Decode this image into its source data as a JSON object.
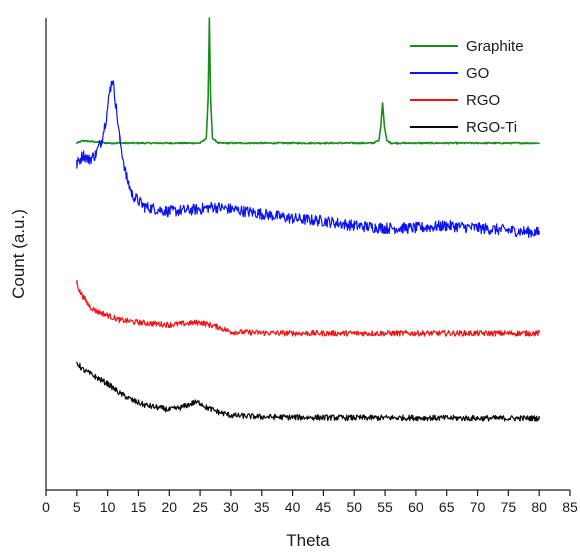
{
  "chart_data": {
    "type": "line",
    "title": "",
    "xlabel": "Theta",
    "ylabel": "Count (a.u.)",
    "xlim": [
      0,
      85
    ],
    "x_ticks": [
      0,
      5,
      10,
      15,
      20,
      25,
      30,
      35,
      40,
      45,
      50,
      55,
      60,
      65,
      70,
      75,
      80,
      85
    ],
    "y_ticks_shown": false,
    "grid": false,
    "legend_position": "top-right",
    "series": [
      {
        "name": "Graphite",
        "color": "#1a8c1a",
        "points": [
          [
            5,
            0.735
          ],
          [
            6,
            0.74
          ],
          [
            10,
            0.735
          ],
          [
            20,
            0.735
          ],
          [
            25,
            0.735
          ],
          [
            26,
            0.745
          ],
          [
            26.3,
            0.83
          ],
          [
            26.5,
            1.0
          ],
          [
            26.7,
            0.83
          ],
          [
            27,
            0.745
          ],
          [
            28,
            0.735
          ],
          [
            40,
            0.735
          ],
          [
            53,
            0.735
          ],
          [
            54,
            0.74
          ],
          [
            54.3,
            0.77
          ],
          [
            54.6,
            0.82
          ],
          [
            54.9,
            0.77
          ],
          [
            55.3,
            0.74
          ],
          [
            56,
            0.735
          ],
          [
            70,
            0.735
          ],
          [
            80,
            0.735
          ]
        ]
      },
      {
        "name": "GO",
        "color": "#0a14f5",
        "points": [
          [
            5,
            0.69
          ],
          [
            6,
            0.71
          ],
          [
            7,
            0.7
          ],
          [
            8,
            0.71
          ],
          [
            9,
            0.74
          ],
          [
            9.8,
            0.79
          ],
          [
            10.4,
            0.85
          ],
          [
            10.8,
            0.87
          ],
          [
            11.3,
            0.82
          ],
          [
            12,
            0.74
          ],
          [
            13,
            0.665
          ],
          [
            14,
            0.625
          ],
          [
            16,
            0.6
          ],
          [
            20,
            0.59
          ],
          [
            25,
            0.595
          ],
          [
            27,
            0.6
          ],
          [
            30,
            0.595
          ],
          [
            35,
            0.585
          ],
          [
            40,
            0.575
          ],
          [
            45,
            0.57
          ],
          [
            50,
            0.56
          ],
          [
            55,
            0.555
          ],
          [
            60,
            0.555
          ],
          [
            65,
            0.56
          ],
          [
            70,
            0.555
          ],
          [
            75,
            0.55
          ],
          [
            80,
            0.545
          ]
        ]
      },
      {
        "name": "RGO",
        "color": "#f01414",
        "points": [
          [
            5,
            0.44
          ],
          [
            5.5,
            0.42
          ],
          [
            6,
            0.41
          ],
          [
            7,
            0.39
          ],
          [
            8,
            0.38
          ],
          [
            10,
            0.37
          ],
          [
            12,
            0.36
          ],
          [
            15,
            0.355
          ],
          [
            20,
            0.35
          ],
          [
            25,
            0.355
          ],
          [
            28,
            0.345
          ],
          [
            30,
            0.335
          ],
          [
            35,
            0.333
          ],
          [
            40,
            0.332
          ],
          [
            50,
            0.332
          ],
          [
            60,
            0.332
          ],
          [
            70,
            0.332
          ],
          [
            80,
            0.332
          ]
        ]
      },
      {
        "name": "RGO-Ti",
        "color": "#0a0a0a",
        "points": [
          [
            5,
            0.27
          ],
          [
            6,
            0.255
          ],
          [
            8,
            0.24
          ],
          [
            10,
            0.225
          ],
          [
            12,
            0.205
          ],
          [
            14,
            0.19
          ],
          [
            16,
            0.18
          ],
          [
            18,
            0.175
          ],
          [
            20,
            0.17
          ],
          [
            22,
            0.175
          ],
          [
            24,
            0.185
          ],
          [
            25,
            0.185
          ],
          [
            26,
            0.175
          ],
          [
            28,
            0.165
          ],
          [
            30,
            0.158
          ],
          [
            35,
            0.155
          ],
          [
            40,
            0.154
          ],
          [
            50,
            0.153
          ],
          [
            60,
            0.153
          ],
          [
            70,
            0.152
          ],
          [
            80,
            0.152
          ]
        ]
      }
    ]
  }
}
